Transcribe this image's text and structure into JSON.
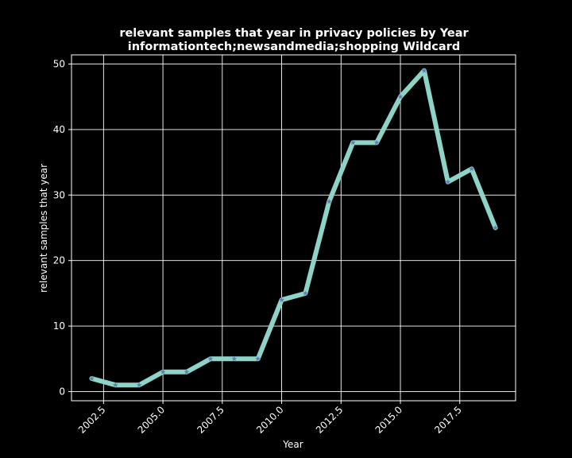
{
  "chart_data": {
    "type": "line",
    "title": "relevant samples that year in privacy policies by Year",
    "subtitle": "informationtech;newsandmedia;shopping Wildcard",
    "xlabel": "Year",
    "ylabel": "relevant samples that year",
    "x": [
      2002,
      2003,
      2004,
      2005,
      2006,
      2007,
      2008,
      2009,
      2010,
      2011,
      2012,
      2013,
      2014,
      2015,
      2016,
      2017,
      2018,
      2019
    ],
    "series": [
      {
        "values": [
          2,
          1,
          1,
          3,
          3,
          5,
          5,
          5,
          14,
          15,
          29,
          38,
          38,
          45,
          49,
          32,
          34,
          25
        ]
      }
    ],
    "xlim": [
      2001.15,
      2019.85
    ],
    "ylim": [
      -1.4,
      51.4
    ],
    "x_ticks": [
      "2002.5",
      "2005.0",
      "2007.5",
      "2010.0",
      "2012.5",
      "2015.0",
      "2017.5"
    ],
    "y_ticks": [
      "0",
      "10",
      "20",
      "30",
      "40",
      "50"
    ],
    "grid": true,
    "line_color": "#8dd3c7",
    "marker_color": "#5b7fb0",
    "background": "#000000"
  }
}
